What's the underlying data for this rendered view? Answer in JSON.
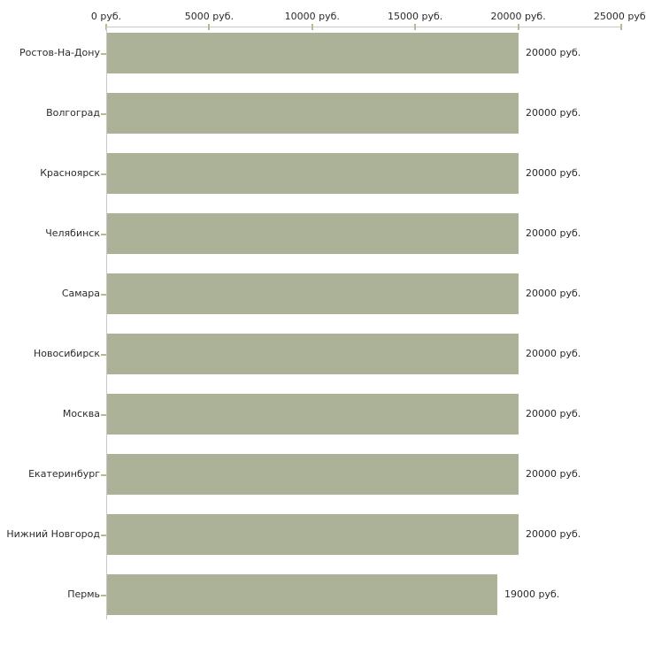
{
  "chart_data": {
    "type": "bar",
    "orientation": "horizontal",
    "title": "",
    "xlabel": "",
    "ylabel": "",
    "categories": [
      "Ростов-На-Дону",
      "Волгоград",
      "Красноярск",
      "Челябинск",
      "Самара",
      "Новосибирск",
      "Москва",
      "Екатеринбург",
      "Нижний Новгород",
      "Пермь"
    ],
    "values": [
      20000,
      20000,
      20000,
      20000,
      20000,
      20000,
      20000,
      20000,
      20000,
      19000
    ],
    "value_labels": [
      "20000 руб.",
      "20000 руб.",
      "20000 руб.",
      "20000 руб.",
      "20000 руб.",
      "20000 руб.",
      "20000 руб.",
      "20000 руб.",
      "20000 руб.",
      "19000 руб."
    ],
    "x_axis": {
      "position": "top",
      "min": 0,
      "max": 25000,
      "ticks": [
        0,
        5000,
        10000,
        15000,
        20000,
        25000
      ],
      "tick_labels": [
        "0 руб.",
        "5000 руб.",
        "10000 руб.",
        "15000 руб.",
        "20000 руб.",
        "25000 руб."
      ]
    },
    "grid": false,
    "legend": false,
    "colors": {
      "bar_fill": "#abb297",
      "axis_line": "#c9c9c5",
      "tick_mark": "#b6ba92",
      "text": "#2b2b2b",
      "background": "#ffffff"
    }
  }
}
